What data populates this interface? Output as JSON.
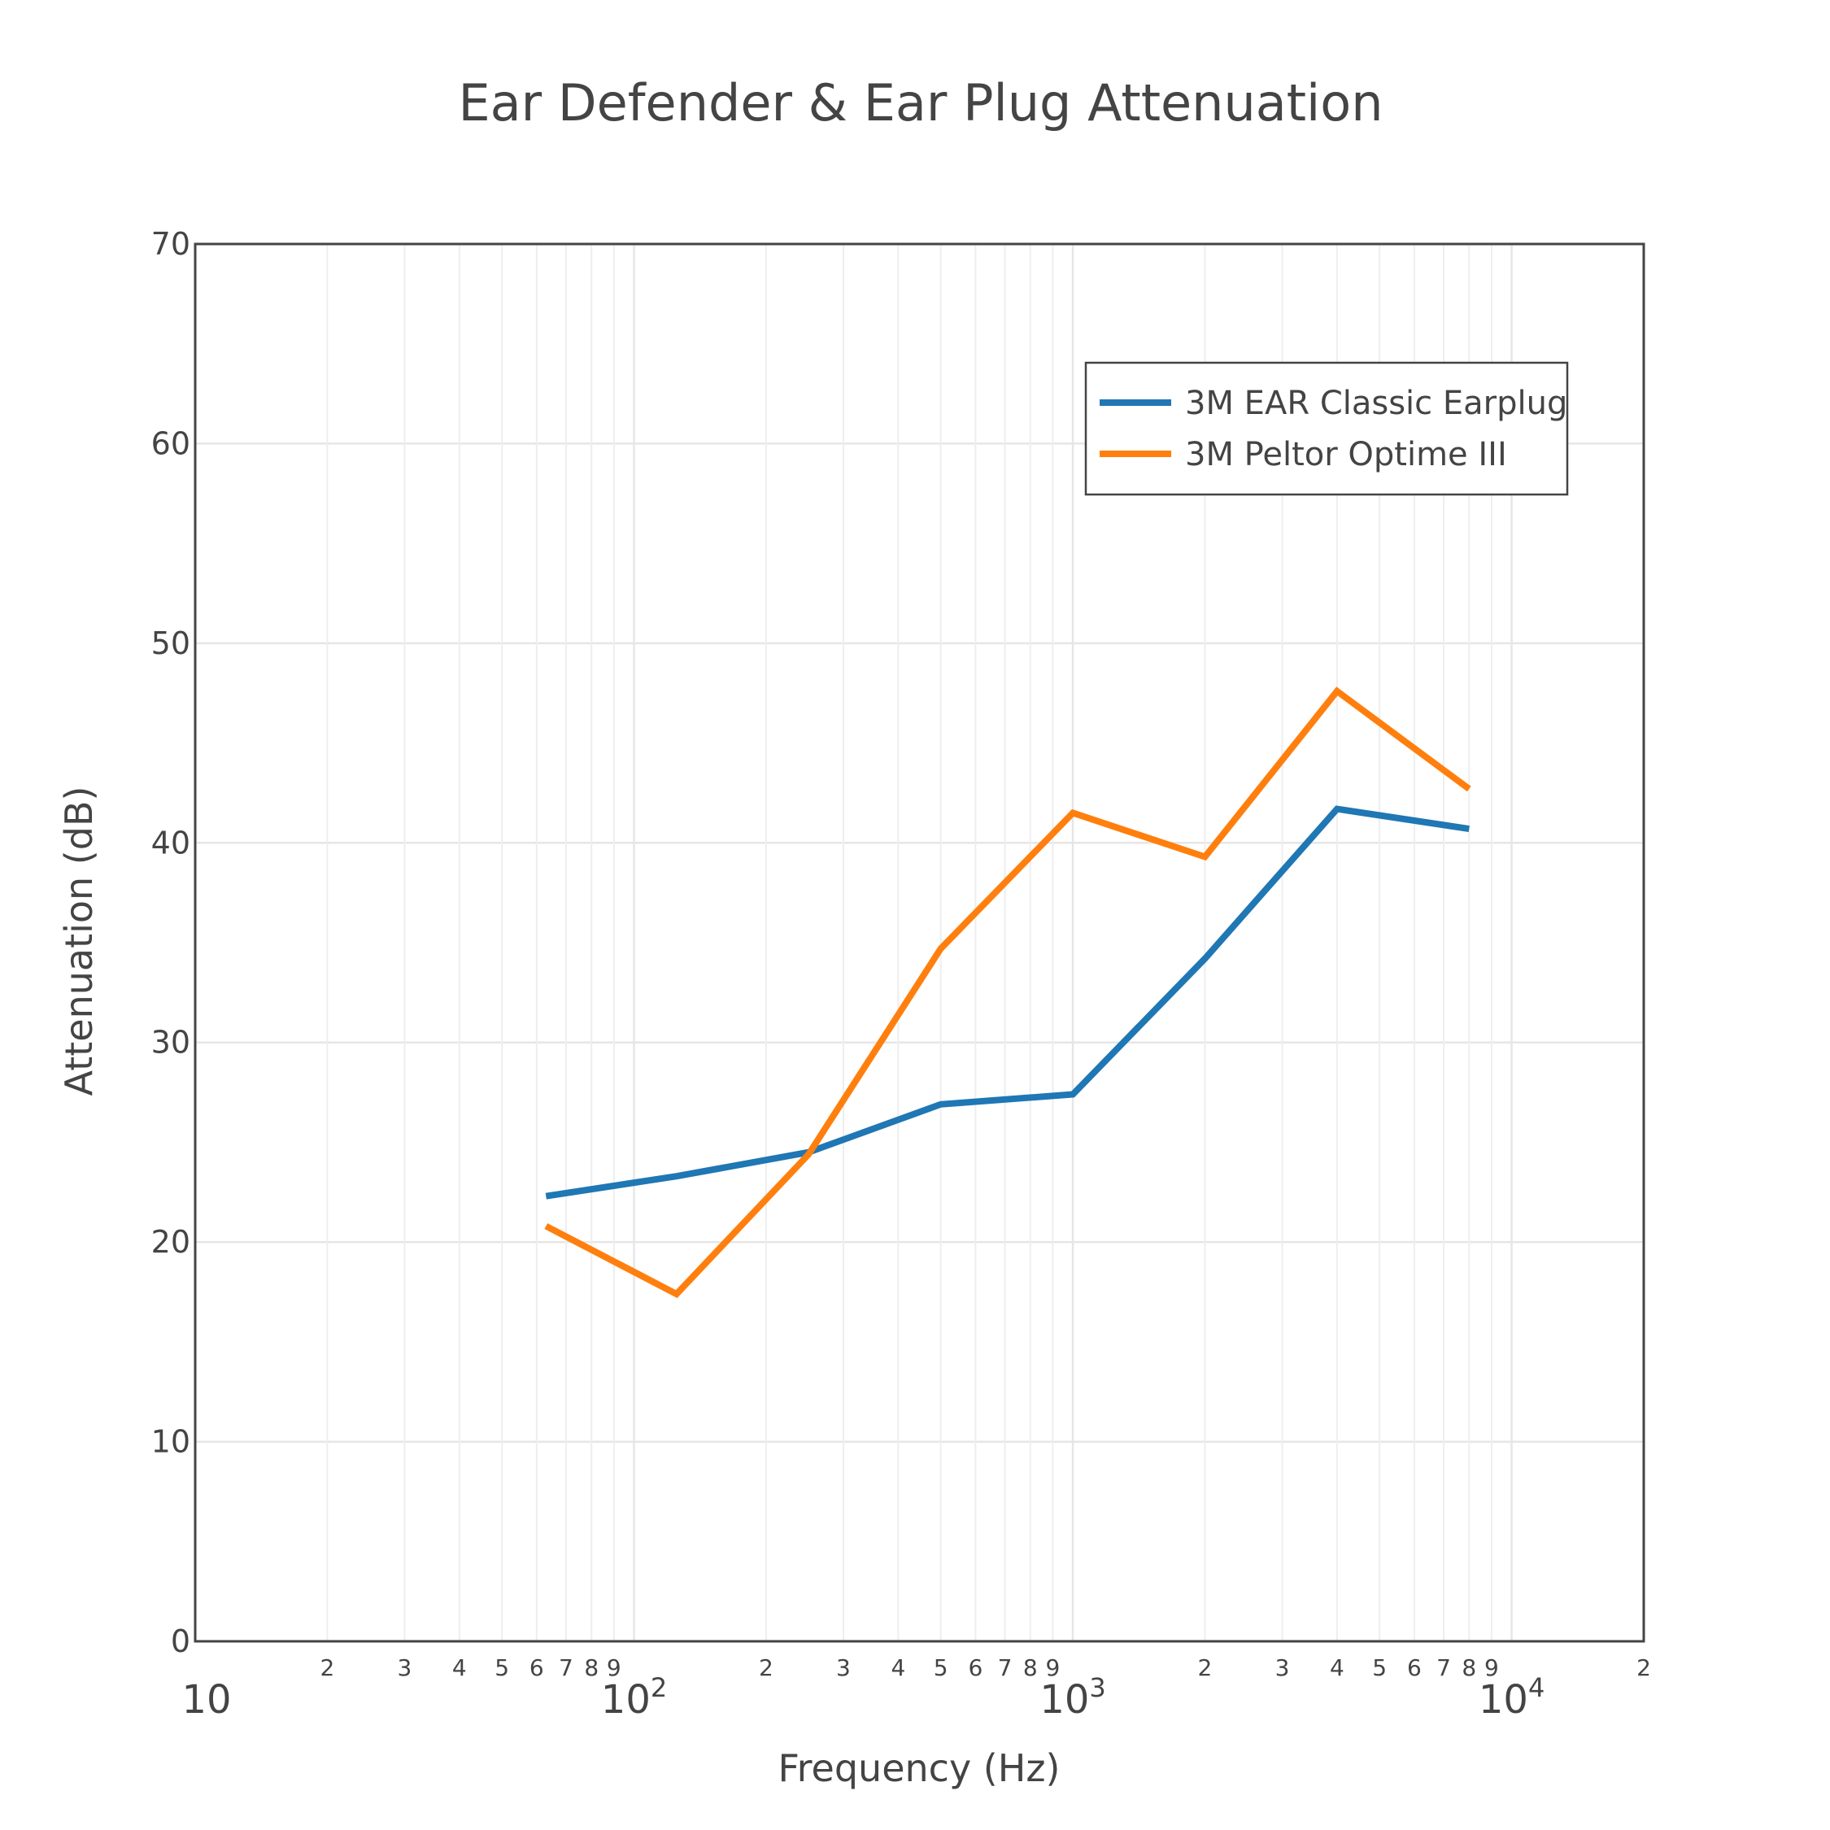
{
  "chart_data": {
    "type": "line",
    "title": "Ear Defender & Ear Plug Attenuation",
    "xlabel": "Frequency (Hz)",
    "ylabel": "Attenuation (dB)",
    "x_scale": "log",
    "xlim": [
      10,
      20000
    ],
    "ylim": [
      0,
      70
    ],
    "y_ticks": [
      "0",
      "10",
      "20",
      "30",
      "40",
      "50",
      "60",
      "70"
    ],
    "x_ticks_major": [
      {
        "base": "10",
        "exp": "",
        "value": 10
      },
      {
        "base": "10",
        "exp": "2",
        "value": 100
      },
      {
        "base": "10",
        "exp": "3",
        "value": 1000
      },
      {
        "base": "10",
        "exp": "4",
        "value": 10000
      }
    ],
    "x_ticks_minor": [
      {
        "label": "2",
        "value": 20
      },
      {
        "label": "3",
        "value": 30
      },
      {
        "label": "4",
        "value": 40
      },
      {
        "label": "5",
        "value": 50
      },
      {
        "label": "6",
        "value": 60
      },
      {
        "label": "7",
        "value": 70
      },
      {
        "label": "8",
        "value": 80
      },
      {
        "label": "9",
        "value": 90
      },
      {
        "label": "2",
        "value": 200
      },
      {
        "label": "3",
        "value": 300
      },
      {
        "label": "4",
        "value": 400
      },
      {
        "label": "5",
        "value": 500
      },
      {
        "label": "6",
        "value": 600
      },
      {
        "label": "7",
        "value": 700
      },
      {
        "label": "8",
        "value": 800
      },
      {
        "label": "9",
        "value": 900
      },
      {
        "label": "2",
        "value": 2000
      },
      {
        "label": "3",
        "value": 3000
      },
      {
        "label": "4",
        "value": 4000
      },
      {
        "label": "5",
        "value": 5000
      },
      {
        "label": "6",
        "value": 6000
      },
      {
        "label": "7",
        "value": 7000
      },
      {
        "label": "8",
        "value": 8000
      },
      {
        "label": "9",
        "value": 9000
      },
      {
        "label": "2",
        "value": 20000
      }
    ],
    "grid": true,
    "legend_position": "top-right",
    "series": [
      {
        "name": "3M EAR Classic Earplug",
        "color": "#1f77b4",
        "x": [
          63,
          125,
          250,
          500,
          1000,
          2000,
          4000,
          8000
        ],
        "y": [
          22.3,
          23.3,
          24.5,
          26.9,
          27.4,
          34.2,
          41.7,
          40.7
        ]
      },
      {
        "name": "3M Peltor Optime III",
        "color": "#ff7f0e",
        "x": [
          63,
          125,
          250,
          500,
          1000,
          2000,
          4000,
          8000
        ],
        "y": [
          20.8,
          17.4,
          24.4,
          34.7,
          41.5,
          39.3,
          47.6,
          42.7
        ]
      }
    ]
  }
}
